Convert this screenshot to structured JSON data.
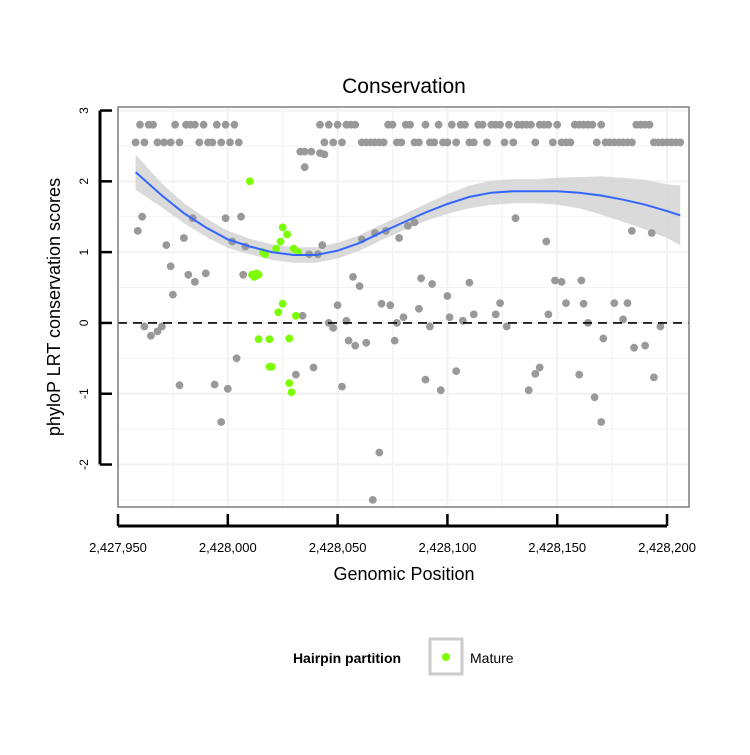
{
  "chart_data": {
    "type": "scatter",
    "title": "Conservation",
    "xlabel": "Genomic Position",
    "ylabel": "phyloP LRT conservation scores",
    "xlim": [
      2427950,
      2428210
    ],
    "ylim": [
      -2.6,
      3.05
    ],
    "x_ticks": [
      2427950,
      2428000,
      2428050,
      2428100,
      2428150,
      2428200
    ],
    "x_tick_labels": [
      "2,427,950",
      "2,428,000",
      "2,428,050",
      "2,428,100",
      "2,428,150",
      "2,428,200"
    ],
    "y_ticks": [
      -2,
      -1,
      0,
      1,
      2,
      3
    ],
    "y_tick_labels": [
      "-2",
      "-1",
      "0",
      "1",
      "2",
      "3"
    ],
    "reference_line": {
      "y": 0,
      "style": "dashed"
    },
    "legend": {
      "title": "Hairpin partition",
      "entries": [
        {
          "label": "Mature",
          "color": "#7cfc00"
        }
      ],
      "position": "bottom"
    },
    "colors": {
      "hairpin": "#999999",
      "mature": "#7cfc00",
      "smooth_line": "#3366ff",
      "smooth_band": "#d4d4d4",
      "grid": "#f2f2f2",
      "panel_border": "#7f7f7f"
    },
    "series": [
      {
        "name": "Hairpin",
        "color": "#999999",
        "points": [
          [
            2427958,
            2.55
          ],
          [
            2427960,
            2.8
          ],
          [
            2427962,
            2.55
          ],
          [
            2427964,
            2.8
          ],
          [
            2427966,
            2.8
          ],
          [
            2427968,
            2.55
          ],
          [
            2427971,
            2.55
          ],
          [
            2427974,
            2.55
          ],
          [
            2427976,
            2.8
          ],
          [
            2427978,
            2.55
          ],
          [
            2427981,
            2.8
          ],
          [
            2427983,
            2.8
          ],
          [
            2427985,
            2.8
          ],
          [
            2427987,
            2.55
          ],
          [
            2427989,
            2.8
          ],
          [
            2427991,
            2.55
          ],
          [
            2427993,
            2.55
          ],
          [
            2427995,
            2.8
          ],
          [
            2427997,
            2.55
          ],
          [
            2427999,
            2.8
          ],
          [
            2428001,
            2.55
          ],
          [
            2428003,
            2.8
          ],
          [
            2428005,
            2.55
          ],
          [
            2428033,
            2.42
          ],
          [
            2428035,
            2.42
          ],
          [
            2428038,
            2.42
          ],
          [
            2428042,
            2.4
          ],
          [
            2428044,
            2.38
          ],
          [
            2428035,
            2.2
          ],
          [
            2428042,
            2.8
          ],
          [
            2428044,
            2.55
          ],
          [
            2428046,
            2.8
          ],
          [
            2428048,
            2.55
          ],
          [
            2428050,
            2.8
          ],
          [
            2428052,
            2.55
          ],
          [
            2428054,
            2.8
          ],
          [
            2428056,
            2.8
          ],
          [
            2428058,
            2.8
          ],
          [
            2428061,
            2.55
          ],
          [
            2428063,
            2.55
          ],
          [
            2428065,
            2.55
          ],
          [
            2428067,
            2.55
          ],
          [
            2428069,
            2.55
          ],
          [
            2428071,
            2.55
          ],
          [
            2428073,
            2.8
          ],
          [
            2428075,
            2.8
          ],
          [
            2428077,
            2.55
          ],
          [
            2428079,
            2.55
          ],
          [
            2428081,
            2.8
          ],
          [
            2428083,
            2.8
          ],
          [
            2428085,
            2.55
          ],
          [
            2428087,
            2.55
          ],
          [
            2428090,
            2.8
          ],
          [
            2428092,
            2.55
          ],
          [
            2428094,
            2.55
          ],
          [
            2428096,
            2.8
          ],
          [
            2428098,
            2.55
          ],
          [
            2428100,
            2.55
          ],
          [
            2428102,
            2.8
          ],
          [
            2428104,
            2.55
          ],
          [
            2428106,
            2.8
          ],
          [
            2428108,
            2.8
          ],
          [
            2428110,
            2.55
          ],
          [
            2428112,
            2.55
          ],
          [
            2428114,
            2.8
          ],
          [
            2428116,
            2.8
          ],
          [
            2428118,
            2.55
          ],
          [
            2428120,
            2.8
          ],
          [
            2428122,
            2.8
          ],
          [
            2428124,
            2.8
          ],
          [
            2428126,
            2.55
          ],
          [
            2428128,
            2.8
          ],
          [
            2428130,
            2.55
          ],
          [
            2428132,
            2.8
          ],
          [
            2428134,
            2.8
          ],
          [
            2428136,
            2.8
          ],
          [
            2428138,
            2.8
          ],
          [
            2428140,
            2.55
          ],
          [
            2428142,
            2.8
          ],
          [
            2428144,
            2.8
          ],
          [
            2428146,
            2.8
          ],
          [
            2428148,
            2.55
          ],
          [
            2428150,
            2.8
          ],
          [
            2428152,
            2.55
          ],
          [
            2428154,
            2.55
          ],
          [
            2428156,
            2.55
          ],
          [
            2428158,
            2.8
          ],
          [
            2428160,
            2.8
          ],
          [
            2428162,
            2.8
          ],
          [
            2428164,
            2.8
          ],
          [
            2428166,
            2.8
          ],
          [
            2428168,
            2.55
          ],
          [
            2428170,
            2.8
          ],
          [
            2428172,
            2.55
          ],
          [
            2428174,
            2.55
          ],
          [
            2428176,
            2.55
          ],
          [
            2428178,
            2.55
          ],
          [
            2428180,
            2.55
          ],
          [
            2428182,
            2.55
          ],
          [
            2428184,
            2.55
          ],
          [
            2428186,
            2.8
          ],
          [
            2428188,
            2.8
          ],
          [
            2428190,
            2.8
          ],
          [
            2428192,
            2.8
          ],
          [
            2428194,
            2.55
          ],
          [
            2428196,
            2.55
          ],
          [
            2428198,
            2.55
          ],
          [
            2428200,
            2.55
          ],
          [
            2428202,
            2.55
          ],
          [
            2428204,
            2.55
          ],
          [
            2428206,
            2.55
          ],
          [
            2427959,
            1.3
          ],
          [
            2427961,
            1.5
          ],
          [
            2427962,
            -0.05
          ],
          [
            2427965,
            -0.18
          ],
          [
            2427968,
            -0.12
          ],
          [
            2427970,
            -0.05
          ],
          [
            2427972,
            1.1
          ],
          [
            2427974,
            0.8
          ],
          [
            2427975,
            0.4
          ],
          [
            2427978,
            -0.88
          ],
          [
            2427980,
            1.2
          ],
          [
            2427982,
            0.68
          ],
          [
            2427984,
            1.48
          ],
          [
            2427985,
            0.58
          ],
          [
            2427990,
            0.7
          ],
          [
            2427994,
            -0.87
          ],
          [
            2427997,
            -1.4
          ],
          [
            2427999,
            1.48
          ],
          [
            2428000,
            -0.93
          ],
          [
            2428002,
            1.15
          ],
          [
            2428004,
            -0.5
          ],
          [
            2428006,
            1.5
          ],
          [
            2428007,
            0.68
          ],
          [
            2428008,
            1.08
          ],
          [
            2428031,
            -0.73
          ],
          [
            2428034,
            0.1
          ],
          [
            2428037,
            0.97
          ],
          [
            2428039,
            -0.63
          ],
          [
            2428041,
            0.97
          ],
          [
            2428043,
            1.1
          ],
          [
            2428046,
            0.0
          ],
          [
            2428048,
            -0.07
          ],
          [
            2428050,
            0.25
          ],
          [
            2428052,
            -0.9
          ],
          [
            2428054,
            0.03
          ],
          [
            2428055,
            -0.25
          ],
          [
            2428057,
            0.65
          ],
          [
            2428058,
            -0.32
          ],
          [
            2428060,
            0.52
          ],
          [
            2428061,
            1.18
          ],
          [
            2428063,
            -0.28
          ],
          [
            2428066,
            -2.5
          ],
          [
            2428067,
            1.27
          ],
          [
            2428069,
            -1.83
          ],
          [
            2428070,
            0.27
          ],
          [
            2428072,
            1.3
          ],
          [
            2428074,
            0.25
          ],
          [
            2428076,
            -0.25
          ],
          [
            2428077,
            0.0
          ],
          [
            2428078,
            1.2
          ],
          [
            2428080,
            0.08
          ],
          [
            2428082,
            1.37
          ],
          [
            2428085,
            1.42
          ],
          [
            2428087,
            0.2
          ],
          [
            2428088,
            0.63
          ],
          [
            2428090,
            -0.8
          ],
          [
            2428092,
            -0.05
          ],
          [
            2428093,
            0.55
          ],
          [
            2428097,
            -0.95
          ],
          [
            2428100,
            0.38
          ],
          [
            2428101,
            0.08
          ],
          [
            2428104,
            -0.68
          ],
          [
            2428107,
            0.03
          ],
          [
            2428110,
            0.57
          ],
          [
            2428112,
            0.12
          ],
          [
            2428122,
            0.12
          ],
          [
            2428124,
            0.28
          ],
          [
            2428127,
            -0.05
          ],
          [
            2428131,
            1.48
          ],
          [
            2428137,
            -0.95
          ],
          [
            2428140,
            -0.72
          ],
          [
            2428142,
            -0.63
          ],
          [
            2428145,
            1.15
          ],
          [
            2428146,
            0.12
          ],
          [
            2428149,
            0.6
          ],
          [
            2428152,
            0.58
          ],
          [
            2428154,
            0.28
          ],
          [
            2428160,
            -0.73
          ],
          [
            2428161,
            0.6
          ],
          [
            2428162,
            0.27
          ],
          [
            2428164,
            0.0
          ],
          [
            2428167,
            -1.05
          ],
          [
            2428170,
            -1.4
          ],
          [
            2428171,
            -0.22
          ],
          [
            2428176,
            0.28
          ],
          [
            2428180,
            0.05
          ],
          [
            2428182,
            0.28
          ],
          [
            2428184,
            1.3
          ],
          [
            2428185,
            -0.35
          ],
          [
            2428190,
            -0.32
          ],
          [
            2428193,
            1.27
          ],
          [
            2428194,
            -0.77
          ],
          [
            2428197,
            -0.05
          ]
        ]
      },
      {
        "name": "Mature",
        "color": "#7cfc00",
        "points": [
          [
            2428010,
            2.0
          ],
          [
            2428011,
            0.68
          ],
          [
            2428012,
            0.65
          ],
          [
            2428013,
            0.7
          ],
          [
            2428014,
            0.68
          ],
          [
            2428014,
            -0.23
          ],
          [
            2428016,
            1.0
          ],
          [
            2428017,
            0.97
          ],
          [
            2428019,
            -0.23
          ],
          [
            2428019,
            -0.62
          ],
          [
            2428020,
            -0.62
          ],
          [
            2428022,
            1.05
          ],
          [
            2428023,
            0.15
          ],
          [
            2428024,
            1.15
          ],
          [
            2428025,
            1.35
          ],
          [
            2428025,
            0.27
          ],
          [
            2428027,
            1.25
          ],
          [
            2428028,
            -0.22
          ],
          [
            2428028,
            -0.85
          ],
          [
            2428029,
            -0.98
          ],
          [
            2428030,
            1.05
          ],
          [
            2428031,
            0.1
          ],
          [
            2428032,
            1.0
          ]
        ]
      }
    ],
    "smooth_fit": {
      "method": "loess",
      "x": [
        2427958,
        2427970,
        2427980,
        2427990,
        2428000,
        2428010,
        2428020,
        2428030,
        2428040,
        2428050,
        2428060,
        2428070,
        2428080,
        2428090,
        2428100,
        2428110,
        2428120,
        2428130,
        2428140,
        2428150,
        2428160,
        2428170,
        2428180,
        2428190,
        2428200,
        2428206
      ],
      "y": [
        2.13,
        1.8,
        1.55,
        1.35,
        1.18,
        1.08,
        1.0,
        0.96,
        0.96,
        1.02,
        1.13,
        1.28,
        1.42,
        1.56,
        1.68,
        1.78,
        1.84,
        1.86,
        1.86,
        1.86,
        1.84,
        1.8,
        1.74,
        1.67,
        1.58,
        1.52
      ],
      "lower": [
        1.88,
        1.63,
        1.41,
        1.22,
        1.06,
        0.97,
        0.89,
        0.85,
        0.85,
        0.91,
        1.02,
        1.17,
        1.31,
        1.44,
        1.54,
        1.62,
        1.67,
        1.69,
        1.69,
        1.67,
        1.62,
        1.53,
        1.43,
        1.32,
        1.2,
        1.1
      ],
      "upper": [
        2.38,
        1.97,
        1.69,
        1.48,
        1.3,
        1.19,
        1.11,
        1.07,
        1.07,
        1.13,
        1.24,
        1.39,
        1.53,
        1.68,
        1.82,
        1.94,
        2.01,
        2.03,
        2.03,
        2.05,
        2.06,
        2.07,
        2.05,
        2.02,
        1.96,
        1.94
      ]
    }
  }
}
